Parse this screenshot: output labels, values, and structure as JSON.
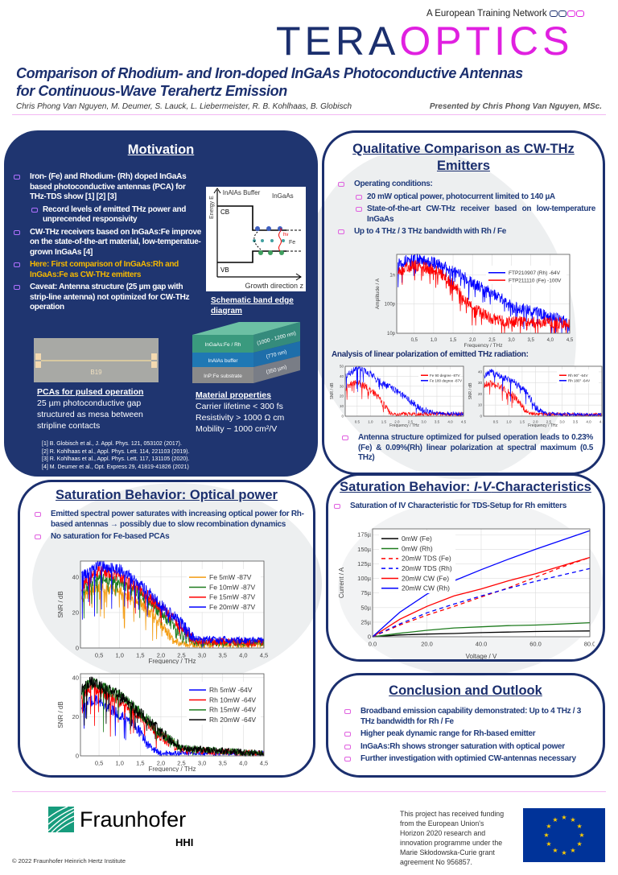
{
  "header": {
    "network_label": "A European Training Network",
    "logo_tera": "TERA",
    "logo_optics": "OPTICS",
    "title_line1": "Comparison of Rhodium- and Iron-doped  InGaAs Photoconductive Antennas",
    "title_line2": "for Continuous-Wave Terahertz Emission",
    "authors": "Chris Phong Van Nguyen, M. Deumer, S. Lauck, L. Liebermeister, R. B. Kohlhaas, B. Globisch",
    "presented_by": "Presented by Chris Phong Van Nguyen, MSc."
  },
  "motivation": {
    "heading": "Motivation",
    "bullets": [
      "Iron- (Fe) and Rhodium- (Rh) doped InGaAs based photoconductive antennas (PCA) for THz-TDS show [1] [2] [3]",
      "Record levels of emitted THz power and unprecended responsivity",
      "CW-THz receivers based on InGaAs:Fe improve on the state-of-the-art material, low-temperatue-grown InGaAs [4]",
      "Here: First comparison of InGaAs:Rh and InGaAs:Fe as CW-THz emitters",
      "Caveat: Antenna structure (25 µm gap with strip-line antenna) not optimized for CW-THz operation"
    ],
    "band_diagram": {
      "caption": "Schematic band edge diagram",
      "buffer_label": "InAlAs Buffer",
      "ingaas_label": "InGaAs",
      "cb": "CB",
      "vb": "VB",
      "fe": "Fe",
      "energy_axis": "Energy E",
      "growth_axis": "Growth direction z",
      "photon": "hν"
    },
    "pca": {
      "chip_label": "B19",
      "heading": "PCAs for pulsed operation",
      "lines": [
        "25 µm photoconductive gap",
        "structured as mesa between",
        "stripline contacts"
      ]
    },
    "layers": {
      "top": "InGaAs:Fe / Rh",
      "top_thickness": "(1000 - 1200 nm)",
      "mid": "InAlAs buffer",
      "mid_thickness": "(770 nm)",
      "bottom": "InP:Fe substrate",
      "bottom_thickness": "(350 µm)",
      "colors": [
        "#3a9a7e",
        "#1f78b4",
        "#8a8a8a"
      ]
    },
    "material": {
      "heading": "Material properties",
      "lines": [
        "Carrier lifetime < 300 fs",
        "Resistivity > 1000 Ω cm",
        "Mobility ~ 1000 cm²/V"
      ]
    },
    "references": [
      "[1] B. Globisch et al., J. Appl. Phys. 121, 053102 (2017).",
      "[2] R. Kohlhaas et al., Appl. Phys. Lett. 114, 221103 (2019).",
      "[3] R. Kohlhaas et al., Appl. Phys. Lett. 117, 131105 (2020).",
      "[4] M. Deumer et al., Opt. Express 29, 41819-41826 (2021)"
    ]
  },
  "qualitative": {
    "heading_line1": "Qualitative Comparison as CW-THz",
    "heading_line2": "Emitters",
    "bullets": [
      "Operating conditions:",
      "20 mW optical power, photocurrent limited to 140 µA",
      "State-of-the-art CW-THz receiver based on low-temperature InGaAs",
      "Up to 4 THz / 3 THz bandwidth with Rh / Fe"
    ],
    "analysis_heading": "Analysis of linear polarization of emitted THz radiation:",
    "polarization_bullet": "Antenna structure optimized for pulsed operation leads to 0.23%(Fe) & 0.09%(Rh) linear polarization at spectral maximum (0.5 THz)"
  },
  "optical_power": {
    "heading": "Saturation Behavior: Optical power",
    "bullets": [
      "Emitted spectral power saturates with increasing optical power for Rh-based antennas → possibly due to slow recombination dynamics",
      "No saturation for Fe-based PCAs"
    ]
  },
  "iv": {
    "heading_prefix": "Saturation Behavior: ",
    "heading_italic": "I-V",
    "heading_suffix": "-Characteristics",
    "bullet": "Saturation of IV Characteristic for TDS-Setup for Rh emitters"
  },
  "conclusion": {
    "heading": "Conclusion and Outlook",
    "bullets": [
      "Broadband emission capability demonstrated: Up to 4 THz / 3 THz bandwidth for Rh / Fe",
      "Higher peak dynamic range for Rh-based emitter",
      "InGaAs:Rh shows stronger saturation with optical power",
      "Further investigation with optimied CW-antennas necessary"
    ]
  },
  "footer": {
    "fraunhofer": "Fraunhofer",
    "hhi": "HHI",
    "copyright": "© 2022 Fraunhofer Heinrich Hertz Institute",
    "funding_lines": [
      "This project has received funding",
      "from the European Union's",
      "Horizon 2020 research and",
      "innovation programme under the",
      "Marie Skłodowska-Curie grant",
      "agreement No 956857."
    ]
  },
  "colors": {
    "navy": "#1b2f6e",
    "magenta": "#e020e0",
    "gold": "#f5b800",
    "fraunhofer_green": "#179c7d",
    "eu_blue": "#003399",
    "eu_gold": "#ffcc00"
  },
  "chart_data": [
    {
      "type": "line",
      "scale": "log",
      "title": "",
      "xlabel": "Frequency / THz",
      "ylabel": "Amplitude / A",
      "xlim": [
        0.05,
        4.5
      ],
      "ylim": [
        1e-11,
        5e-09
      ],
      "xticks": [
        0.5,
        1,
        1.5,
        2,
        2.5,
        3,
        3.5,
        4,
        4.5
      ],
      "xticklabels": [
        "0,5",
        "1,0",
        "1,5",
        "2,0",
        "2,5",
        "3,0",
        "3,5",
        "4,0",
        "4,5"
      ],
      "yticks": [
        1e-11,
        1e-10,
        1e-09
      ],
      "yticklabels": [
        "10p",
        "100p",
        "1n"
      ],
      "legend": "top-right",
      "grid": true,
      "series": [
        {
          "name": "FTP210907 (Rh) -64V",
          "color": "#0000ff",
          "envelope": [
            [
              0.08,
              2.5e-09
            ],
            [
              0.5,
              3.5e-09
            ],
            [
              1.0,
              2.6e-09
            ],
            [
              1.5,
              1.3e-09
            ],
            [
              2.0,
              5e-10
            ],
            [
              2.5,
              2.2e-10
            ],
            [
              3.0,
              8e-11
            ],
            [
              3.5,
              6e-11
            ],
            [
              4.0,
              3.5e-11
            ],
            [
              4.5,
              2.5e-11
            ]
          ]
        },
        {
          "name": "FTP211110 (Fe) -100V",
          "color": "#ff0000",
          "envelope": [
            [
              0.08,
              1.3e-09
            ],
            [
              0.5,
              2.1e-09
            ],
            [
              1.0,
              1.5e-09
            ],
            [
              1.4,
              6e-10
            ],
            [
              1.7,
              2e-10
            ],
            [
              2.0,
              7e-11
            ],
            [
              2.5,
              3e-11
            ],
            [
              3.0,
              2.5e-11
            ],
            [
              4.5,
              2.2e-11
            ]
          ]
        }
      ]
    },
    {
      "type": "line",
      "title": "",
      "xlabel": "Frequency / THz",
      "ylabel": "SNR / dB",
      "xlim": [
        0.05,
        4.5
      ],
      "ylim": [
        0,
        50
      ],
      "xticks": [
        0.5,
        1,
        1.5,
        2,
        2.5,
        3,
        3.5,
        4,
        4.5
      ],
      "xticklabels": [
        "0.5",
        "1.0",
        "1.5",
        "2.0",
        "2.5",
        "3.0",
        "3.5",
        "4.0",
        "4.5"
      ],
      "yticks": [
        0,
        10,
        20,
        30,
        40,
        50
      ],
      "yticklabels": [
        "0",
        "10",
        "20",
        "30",
        "40",
        "50"
      ],
      "legend": "top-right",
      "grid": true,
      "series": [
        {
          "name": "Fe 90 degree -87V",
          "color": "#ff0000",
          "envelope": [
            [
              0.08,
              28
            ],
            [
              0.4,
              34
            ],
            [
              0.8,
              30
            ],
            [
              1.2,
              22
            ],
            [
              1.6,
              8
            ],
            [
              1.8,
              2
            ],
            [
              4.5,
              2
            ]
          ]
        },
        {
          "name": "Fe 180 degree -87V",
          "color": "#0000ff",
          "envelope": [
            [
              0.08,
              40
            ],
            [
              0.5,
              49
            ],
            [
              1.0,
              42
            ],
            [
              1.5,
              32
            ],
            [
              2.0,
              25
            ],
            [
              2.5,
              15
            ],
            [
              3.0,
              6
            ],
            [
              3.5,
              3
            ],
            [
              4.5,
              2
            ]
          ]
        }
      ]
    },
    {
      "type": "line",
      "title": "",
      "xlabel": "Frequency / THz",
      "ylabel": "SNR / dB",
      "xlim": [
        0.05,
        4.5
      ],
      "ylim": [
        0,
        45
      ],
      "xticks": [
        0.5,
        1,
        1.5,
        2,
        2.5,
        3,
        3.5,
        4,
        4.5
      ],
      "xticklabels": [
        "0.5",
        "1.0",
        "1.5",
        "2.0",
        "2.5",
        "3.0",
        "3.5",
        "4.0",
        "4.5"
      ],
      "yticks": [
        0,
        10,
        20,
        30,
        40
      ],
      "yticklabels": [
        "0",
        "10",
        "20",
        "30",
        "40"
      ],
      "legend": "top-right",
      "grid": true,
      "series": [
        {
          "name": "Rh 90° -64V",
          "color": "#ff0000",
          "envelope": [
            [
              0.08,
              28
            ],
            [
              0.3,
              30
            ],
            [
              0.8,
              25
            ],
            [
              1.2,
              18
            ],
            [
              1.6,
              6
            ],
            [
              1.8,
              2
            ],
            [
              4.5,
              1
            ]
          ]
        },
        {
          "name": "Rh 180° -64V",
          "color": "#0000ff",
          "envelope": [
            [
              0.08,
              37
            ],
            [
              0.3,
              40
            ],
            [
              0.8,
              35
            ],
            [
              1.3,
              30
            ],
            [
              1.7,
              20
            ],
            [
              2.0,
              8
            ],
            [
              2.4,
              2
            ],
            [
              4.5,
              1
            ]
          ]
        }
      ]
    },
    {
      "type": "line",
      "title": "",
      "xlabel": "Frequency / THz",
      "ylabel": "SNR / dB",
      "xlim": [
        0.05,
        4.5
      ],
      "ylim": [
        0,
        49
      ],
      "xticks": [
        0.5,
        1,
        1.5,
        2,
        2.5,
        3,
        3.5,
        4,
        4.5
      ],
      "xticklabels": [
        "0,5",
        "1,0",
        "1,5",
        "2,0",
        "2,5",
        "3,0",
        "3,5",
        "4,0",
        "4,5"
      ],
      "yticks": [
        0,
        20,
        40
      ],
      "yticklabels": [
        "0",
        "20",
        "40"
      ],
      "legend": "top-right",
      "grid": true,
      "series": [
        {
          "name": "Fe 5mW -87V",
          "color": "#f39c12",
          "envelope": [
            [
              0.08,
              28
            ],
            [
              0.5,
              35
            ],
            [
              1.0,
              32
            ],
            [
              1.5,
              25
            ],
            [
              2.0,
              14
            ],
            [
              2.3,
              4
            ],
            [
              2.6,
              2
            ],
            [
              4.5,
              2
            ]
          ]
        },
        {
          "name": "Fe 10mW -87V",
          "color": "#1e7b1e",
          "envelope": [
            [
              0.08,
              32
            ],
            [
              0.5,
              40
            ],
            [
              1.0,
              37
            ],
            [
              1.5,
              30
            ],
            [
              2.0,
              20
            ],
            [
              2.5,
              8
            ],
            [
              2.8,
              3
            ],
            [
              4.5,
              3
            ]
          ]
        },
        {
          "name": "Fe 15mW -87V",
          "color": "#ff0000",
          "envelope": [
            [
              0.08,
              35
            ],
            [
              0.5,
              44
            ],
            [
              1.0,
              40
            ],
            [
              1.5,
              33
            ],
            [
              2.0,
              23
            ],
            [
              2.5,
              12
            ],
            [
              2.8,
              4
            ],
            [
              4.5,
              3
            ]
          ]
        },
        {
          "name": "Fe 20mW -87V",
          "color": "#0000ff",
          "envelope": [
            [
              0.08,
              40
            ],
            [
              0.5,
              47
            ],
            [
              1.0,
              44
            ],
            [
              1.5,
              36
            ],
            [
              2.0,
              24
            ],
            [
              2.5,
              14
            ],
            [
              2.8,
              5
            ],
            [
              4.5,
              4
            ]
          ]
        }
      ]
    },
    {
      "type": "line",
      "title": "",
      "xlabel": "Frequency / THz",
      "ylabel": "SNR / dB",
      "xlim": [
        0.05,
        4.5
      ],
      "ylim": [
        0,
        42
      ],
      "xticks": [
        0.5,
        1,
        1.5,
        2,
        2.5,
        3,
        3.5,
        4,
        4.5
      ],
      "xticklabels": [
        "0,5",
        "1,0",
        "1,5",
        "2,0",
        "2,5",
        "3,0",
        "3,5",
        "4,0",
        "4,5"
      ],
      "yticks": [
        0,
        20,
        40
      ],
      "yticklabels": [
        "0",
        "20",
        "40"
      ],
      "legend": "top-right",
      "grid": true,
      "series": [
        {
          "name": "Rh 5mW -64V",
          "color": "#0000ff",
          "envelope": [
            [
              0.08,
              25
            ],
            [
              0.4,
              29
            ],
            [
              1.0,
              21
            ],
            [
              1.4,
              15
            ],
            [
              1.7,
              5
            ],
            [
              2.0,
              1
            ],
            [
              4.5,
              1
            ]
          ]
        },
        {
          "name": "Rh 10mW -64V",
          "color": "#ff0000",
          "envelope": [
            [
              0.08,
              30
            ],
            [
              0.3,
              35
            ],
            [
              1.0,
              28
            ],
            [
              1.5,
              20
            ],
            [
              2.0,
              10
            ],
            [
              2.5,
              3
            ],
            [
              4.5,
              1
            ]
          ]
        },
        {
          "name": "Rh 15mW -64V",
          "color": "#1e7b1e",
          "envelope": [
            [
              0.08,
              33
            ],
            [
              0.3,
              38
            ],
            [
              1.0,
              31
            ],
            [
              1.5,
              22
            ],
            [
              2.0,
              12
            ],
            [
              2.5,
              4
            ],
            [
              4.5,
              1
            ]
          ]
        },
        {
          "name": "Rh 20mW -64V",
          "color": "#000000",
          "envelope": [
            [
              0.08,
              34
            ],
            [
              0.3,
              38
            ],
            [
              1.0,
              31
            ],
            [
              1.5,
              22
            ],
            [
              2.0,
              12
            ],
            [
              2.5,
              4
            ],
            [
              4.5,
              1
            ]
          ]
        }
      ]
    },
    {
      "type": "line",
      "title": "",
      "xlabel": "Voltage / V",
      "ylabel": "Current / A",
      "xlim": [
        0,
        80
      ],
      "ylim": [
        0,
        185
      ],
      "xticks": [
        0,
        20,
        40,
        60,
        80
      ],
      "xticklabels": [
        "0.0",
        "20.0",
        "40.0",
        "60.0",
        "80.0"
      ],
      "yticks": [
        0,
        25,
        50,
        75,
        100,
        125,
        150,
        175
      ],
      "yticklabels": [
        "0",
        "25µ",
        "50µ",
        "75µ",
        "100µ",
        "125µ",
        "150µ",
        "175µ"
      ],
      "legend": "top-left",
      "grid": true,
      "x": [
        0,
        10,
        20,
        30,
        40,
        50,
        60,
        70,
        80
      ],
      "series": [
        {
          "name": "0mW (Fe)",
          "color": "#000000",
          "dash": false,
          "values": [
            0,
            3,
            4.5,
            5.5,
            7,
            8,
            9,
            9.5,
            10
          ]
        },
        {
          "name": "0mW (Rh)",
          "color": "#1e7b1e",
          "dash": false,
          "values": [
            0,
            6,
            11,
            15,
            17,
            19,
            20,
            22,
            24
          ]
        },
        {
          "name": "20mW TDS (Fe)",
          "color": "#ff0000",
          "dash": true,
          "values": [
            0,
            20,
            37,
            52,
            68,
            84,
            102,
            120,
            136
          ]
        },
        {
          "name": "20mW TDS (Rh)",
          "color": "#0000ff",
          "dash": true,
          "values": [
            0,
            22,
            41,
            56,
            70,
            83,
            95,
            106,
            117
          ]
        },
        {
          "name": "20mW CW (Fe)",
          "color": "#ff0000",
          "dash": false,
          "values": [
            0,
            30,
            52,
            70,
            82,
            96,
            108,
            122,
            136
          ]
        },
        {
          "name": "20mW CW (Rh)",
          "color": "#0000ff",
          "dash": false,
          "values": [
            0,
            42,
            73,
            96,
            115,
            133,
            150,
            166,
            182
          ]
        }
      ]
    }
  ]
}
